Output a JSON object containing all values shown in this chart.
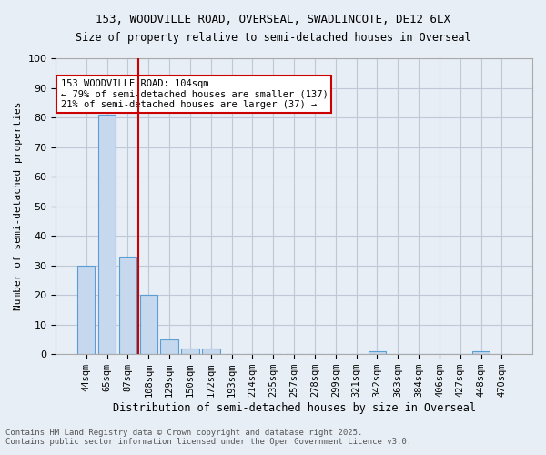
{
  "title1": "153, WOODVILLE ROAD, OVERSEAL, SWADLINCOTE, DE12 6LX",
  "title2": "Size of property relative to semi-detached houses in Overseal",
  "xlabel": "Distribution of semi-detached houses by size in Overseal",
  "ylabel": "Number of semi-detached properties",
  "footer1": "Contains HM Land Registry data © Crown copyright and database right 2025.",
  "footer2": "Contains public sector information licensed under the Open Government Licence v3.0.",
  "categories": [
    "44sqm",
    "65sqm",
    "87sqm",
    "108sqm",
    "129sqm",
    "150sqm",
    "172sqm",
    "193sqm",
    "214sqm",
    "235sqm",
    "257sqm",
    "278sqm",
    "299sqm",
    "321sqm",
    "342sqm",
    "363sqm",
    "384sqm",
    "406sqm",
    "427sqm",
    "448sqm",
    "470sqm"
  ],
  "values": [
    30,
    81,
    33,
    20,
    5,
    2,
    2,
    0,
    0,
    0,
    0,
    0,
    0,
    0,
    1,
    0,
    0,
    0,
    0,
    1,
    0
  ],
  "bar_color": "#c5d8ed",
  "bar_edge_color": "#5a9fd4",
  "grid_color": "#c0c8d8",
  "background_color": "#e8eef5",
  "vline_x": 3,
  "vline_color": "#cc0000",
  "annotation_title": "153 WOODVILLE ROAD: 104sqm",
  "annotation_line1": "← 79% of semi-detached houses are smaller (137)",
  "annotation_line2": "21% of semi-detached houses are larger (37) →",
  "annotation_box_color": "#ffffff",
  "annotation_box_edge": "#cc0000",
  "ylim": [
    0,
    100
  ],
  "yticks": [
    0,
    10,
    20,
    30,
    40,
    50,
    60,
    70,
    80,
    90,
    100
  ]
}
